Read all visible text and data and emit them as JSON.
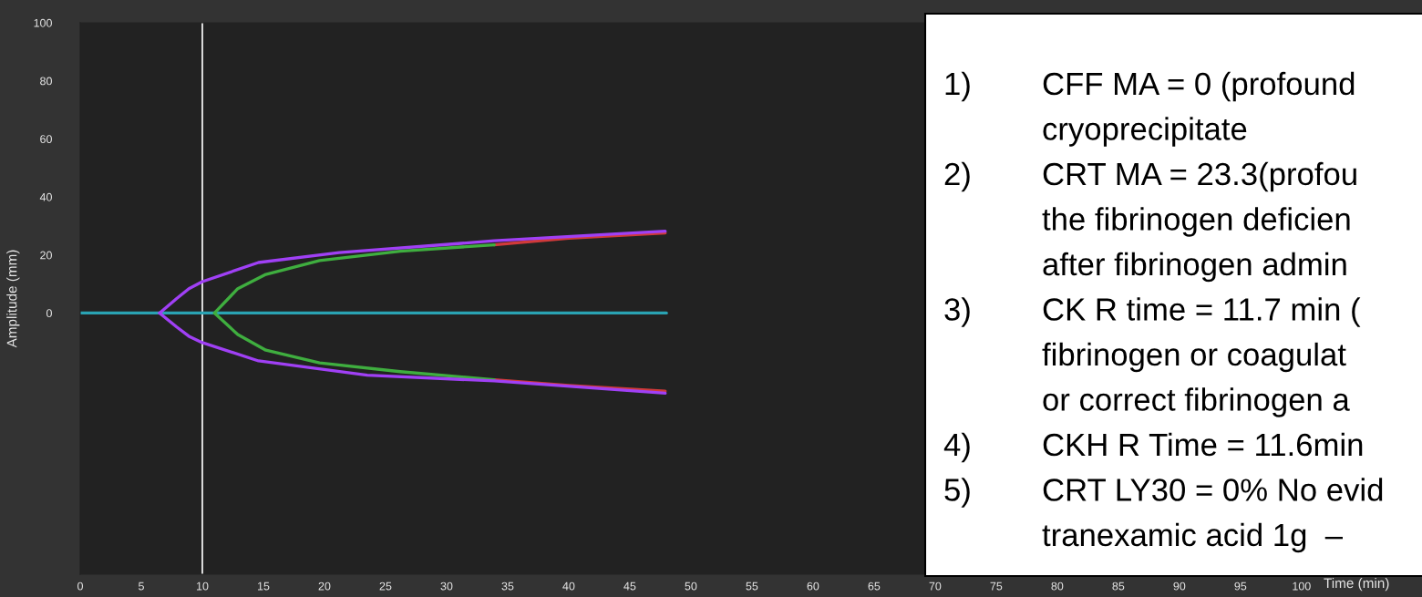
{
  "chart_data": {
    "type": "line",
    "ylabel": "Amplitude (mm)",
    "xlabel": "Time (min)",
    "xlim": [
      0,
      108
    ],
    "xticks": [
      0,
      5,
      10,
      15,
      20,
      25,
      30,
      35,
      40,
      45,
      50,
      55,
      60,
      65,
      70,
      75,
      80,
      85,
      90,
      95,
      100
    ],
    "ylim": [
      -90,
      100
    ],
    "yticks": [
      0,
      20,
      40,
      60,
      80,
      100
    ],
    "grid": false,
    "marker": "none",
    "series": [
      {
        "color": "#2aa3b3",
        "x": [
          0,
          48
        ],
        "values": [
          0,
          0
        ]
      },
      {
        "color": "#d03a3a",
        "x": [
          33.9,
          40.0,
          47.9
        ],
        "values": [
          23.5,
          25.8,
          27.6
        ]
      },
      {
        "color": "#d03a3a",
        "x": [
          33.9,
          40.0,
          47.9
        ],
        "values": [
          -23.0,
          -25.0,
          -26.9
        ]
      },
      {
        "color": "#3fae3f",
        "x": [
          11.0,
          12.9,
          15.2,
          19.6,
          26.2,
          33.9
        ],
        "values": [
          0,
          8.4,
          13.3,
          18.1,
          21.3,
          23.5
        ]
      },
      {
        "color": "#3fae3f",
        "x": [
          11.0,
          12.9,
          15.2,
          19.6,
          26.2,
          33.9
        ],
        "values": [
          0,
          -7.4,
          -12.8,
          -17.2,
          -20.2,
          -23.0
        ]
      },
      {
        "color": "#a040f5",
        "x": [
          6.5,
          7.9,
          8.9,
          10.0,
          14.6,
          21.2,
          31.2,
          33.9,
          47.9
        ],
        "values": [
          0,
          5.0,
          8.4,
          10.8,
          17.4,
          20.8,
          24.0,
          24.9,
          28.2
        ]
      },
      {
        "color": "#a040f5",
        "x": [
          6.5,
          7.9,
          8.9,
          10.0,
          14.6,
          23.5,
          33.9,
          47.9
        ],
        "values": [
          0,
          -4.8,
          -8.0,
          -10.2,
          -16.5,
          -21.4,
          -23.4,
          -27.6
        ]
      }
    ],
    "ref_lines": [
      {
        "axis": "x",
        "value": 10,
        "color": "#ffffff"
      }
    ],
    "annotations": [
      "1)\tCFF MA = 0 (profound",
      "\tcryoprecipitate",
      "2)\tCRT MA = 23.3(profou",
      "\tthe fibrinogen deficien",
      "\tafter fibrinogen admin",
      "3)\tCK R time = 11.7 min (",
      "\tfibrinogen or coagulat",
      "\tor correct fibrinogen a",
      "4)\tCKH R Time = 11.6min",
      "5)\tCRT LY30 = 0% No evid",
      "\ttranexamic acid 1g  –"
    ]
  }
}
